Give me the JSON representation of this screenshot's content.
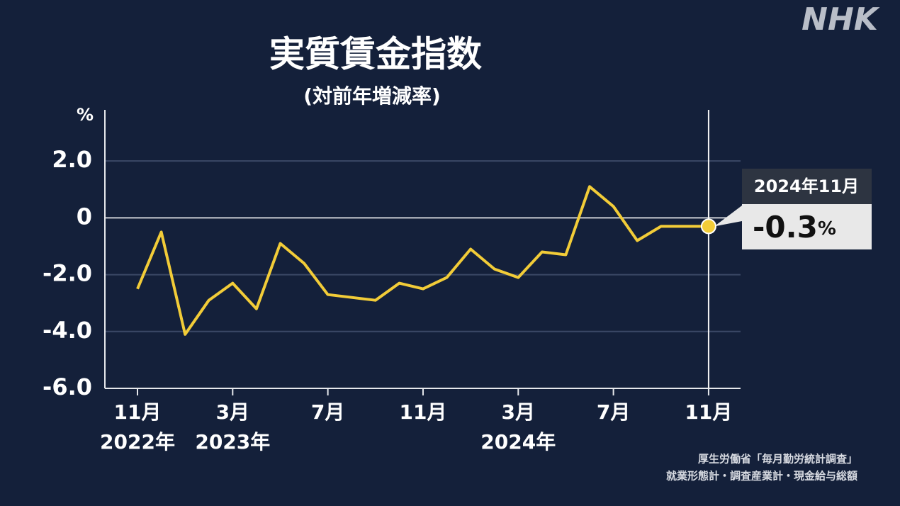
{
  "chart_data": {
    "type": "line",
    "title": "実質賃金指数",
    "subtitle": "(対前年増減率)",
    "y_unit": "%",
    "logo": "NHK",
    "source": [
      "厚生労働省「毎月勤労統計調査」",
      "就業形態計・調査産業計・現金給与総額"
    ],
    "categories": [
      "11月",
      null,
      null,
      null,
      "3月",
      null,
      null,
      null,
      "7月",
      null,
      null,
      null,
      "11月",
      null,
      null,
      null,
      "3月",
      null,
      null,
      null,
      "7月",
      null,
      null,
      null,
      "11月"
    ],
    "year_labels": [
      "2022年",
      null,
      null,
      null,
      "2023年",
      null,
      null,
      null,
      null,
      null,
      null,
      null,
      null,
      null,
      null,
      null,
      "2024年",
      null,
      null,
      null,
      null,
      null,
      null,
      null,
      null
    ],
    "series": [
      {
        "color": "#f2cc38",
        "values": [
          -2.5,
          -0.5,
          -4.1,
          -2.9,
          -2.3,
          -3.2,
          -0.9,
          -1.6,
          -2.7,
          -2.8,
          -2.9,
          -2.3,
          -2.5,
          -2.1,
          -1.1,
          -1.8,
          -2.1,
          -1.2,
          -1.3,
          1.1,
          0.4,
          -0.8,
          -0.3,
          -0.3,
          -0.3
        ]
      }
    ],
    "ylim": [
      -6,
      3.8
    ],
    "yticks": [
      {
        "value": 2,
        "label": "2.0"
      },
      0,
      {
        "value": -2,
        "label": "-2.0"
      },
      {
        "value": -4,
        "label": "-4.0"
      },
      {
        "value": -6,
        "label": "-6.0"
      }
    ],
    "grid": true,
    "callout": {
      "date": "2024年11月",
      "unit": "%"
    }
  }
}
